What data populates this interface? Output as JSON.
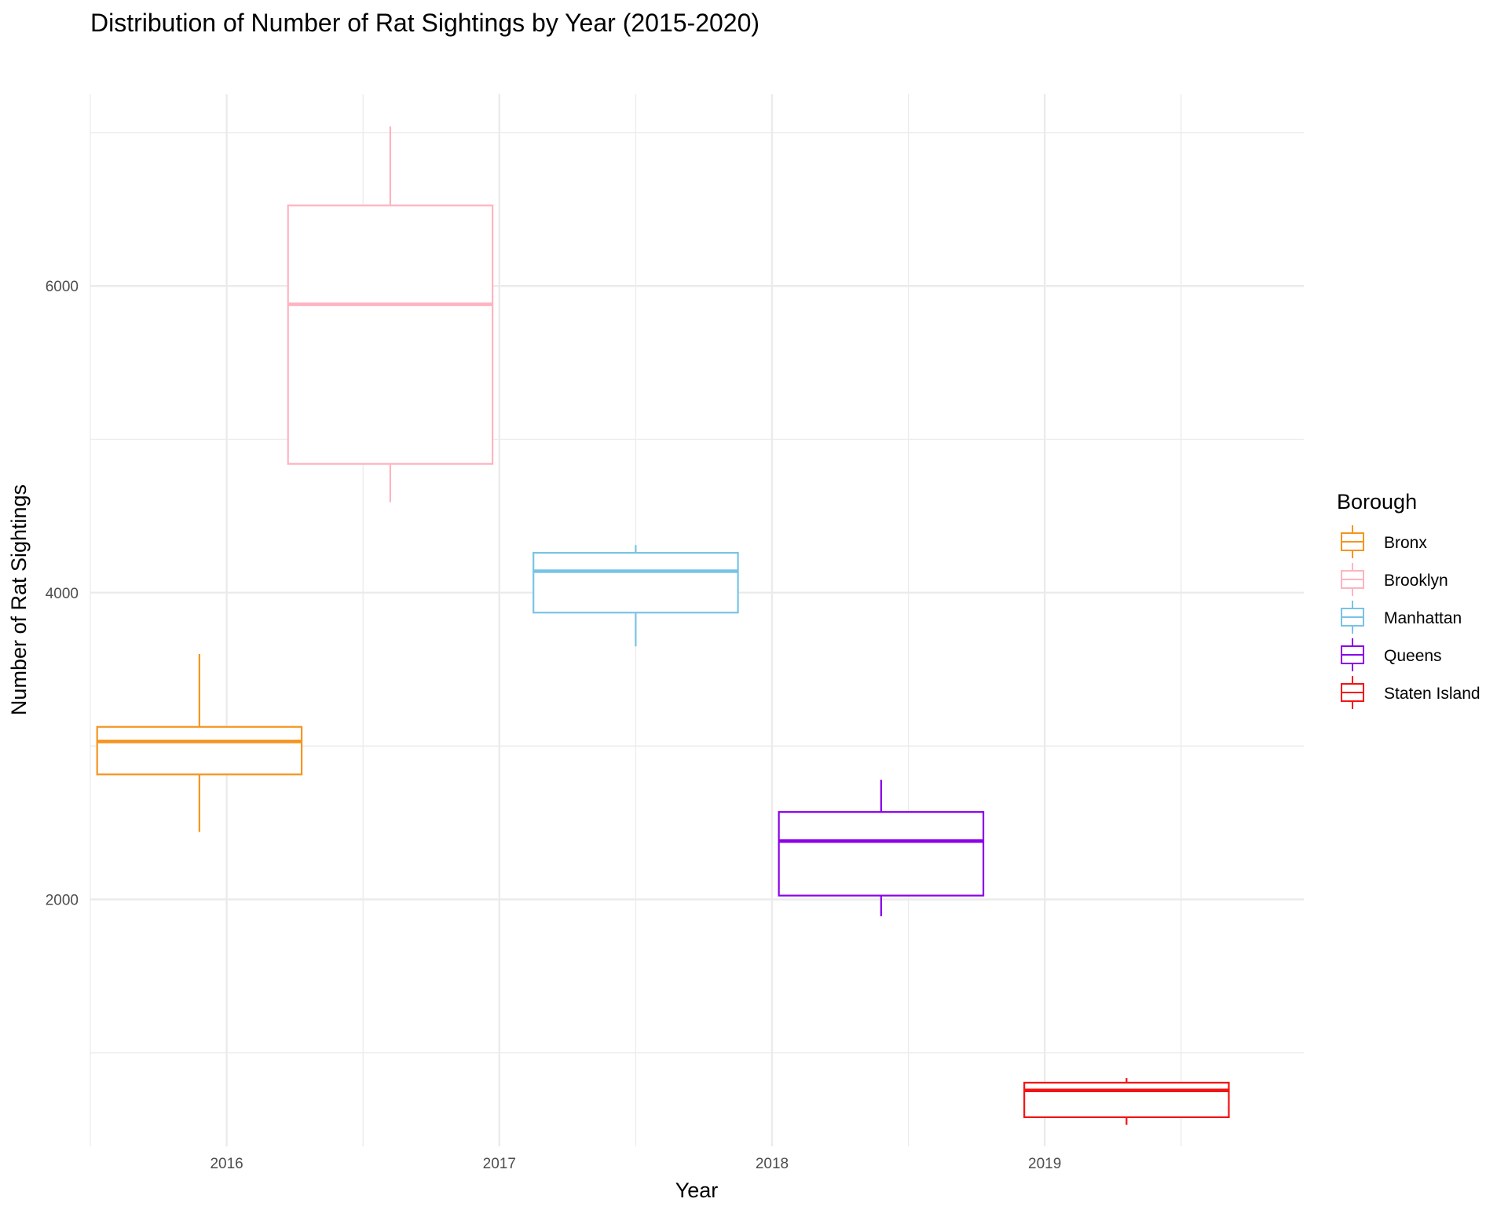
{
  "chart_data": {
    "type": "boxplot",
    "title": "Distribution of Number of Rat Sightings by Year (2015-2020)",
    "xlabel": "Year",
    "ylabel": "Number of Rat Sightings",
    "x_ticks": [
      "2016",
      "2017",
      "2018",
      "2019"
    ],
    "x_range": [
      2015.5,
      2019.95
    ],
    "y_ticks": [
      2000,
      4000,
      6000
    ],
    "ylim": [
      390,
      7250
    ],
    "grid": true,
    "legend": {
      "title": "Borough",
      "placement": "right"
    },
    "series": [
      {
        "name": "Bronx",
        "color": "#f5951f",
        "x_center": 2015.9,
        "min": 2440,
        "q1": 2815,
        "median": 3030,
        "q3": 3125,
        "max": 3600
      },
      {
        "name": "Brooklyn",
        "color": "#ffb3c1",
        "x_center": 2016.6,
        "min": 4590,
        "q1": 4840,
        "median": 5880,
        "q3": 6525,
        "max": 7040
      },
      {
        "name": "Manhattan",
        "color": "#78c3e6",
        "x_center": 2017.5,
        "min": 3650,
        "q1": 3870,
        "median": 4140,
        "q3": 4260,
        "max": 4310
      },
      {
        "name": "Queens",
        "color": "#8b00e8",
        "x_center": 2018.4,
        "min": 1890,
        "q1": 2025,
        "median": 2380,
        "q3": 2570,
        "max": 2780
      },
      {
        "name": "Staten Island",
        "color": "#f21414",
        "x_center": 2019.3,
        "min": 530,
        "q1": 580,
        "median": 755,
        "q3": 805,
        "max": 835
      }
    ]
  }
}
